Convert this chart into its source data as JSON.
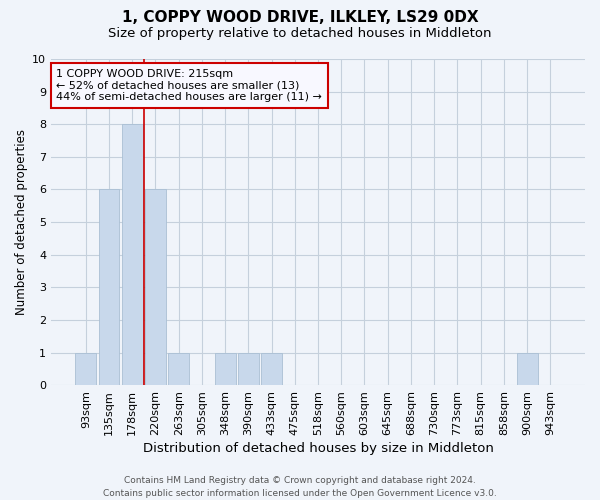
{
  "title": "1, COPPY WOOD DRIVE, ILKLEY, LS29 0DX",
  "subtitle": "Size of property relative to detached houses in Middleton",
  "xlabel": "Distribution of detached houses by size in Middleton",
  "ylabel": "Number of detached properties",
  "categories": [
    "93sqm",
    "135sqm",
    "178sqm",
    "220sqm",
    "263sqm",
    "305sqm",
    "348sqm",
    "390sqm",
    "433sqm",
    "475sqm",
    "518sqm",
    "560sqm",
    "603sqm",
    "645sqm",
    "688sqm",
    "730sqm",
    "773sqm",
    "815sqm",
    "858sqm",
    "900sqm",
    "943sqm"
  ],
  "values": [
    1,
    6,
    8,
    6,
    1,
    0,
    1,
    1,
    1,
    0,
    0,
    0,
    0,
    0,
    0,
    0,
    0,
    0,
    0,
    1,
    0
  ],
  "bar_color": "#c8d8eb",
  "bar_edge_color": "#aabfd4",
  "grid_color": "#c5d0dc",
  "red_line_x": 2.5,
  "red_line_color": "#cc0000",
  "annotation_text": "1 COPPY WOOD DRIVE: 215sqm\n← 52% of detached houses are smaller (13)\n44% of semi-detached houses are larger (11) →",
  "annotation_box_edge": "#cc0000",
  "annotation_box_bg": "#f8f8ff",
  "ylim": [
    0,
    10
  ],
  "yticks": [
    0,
    1,
    2,
    3,
    4,
    5,
    6,
    7,
    8,
    9,
    10
  ],
  "title_fontsize": 11,
  "subtitle_fontsize": 9.5,
  "xlabel_fontsize": 9.5,
  "ylabel_fontsize": 8.5,
  "tick_fontsize": 8,
  "annotation_fontsize": 8,
  "footnote": "Contains HM Land Registry data © Crown copyright and database right 2024.\nContains public sector information licensed under the Open Government Licence v3.0.",
  "footnote_fontsize": 6.5,
  "background_color": "#f0f4fa"
}
